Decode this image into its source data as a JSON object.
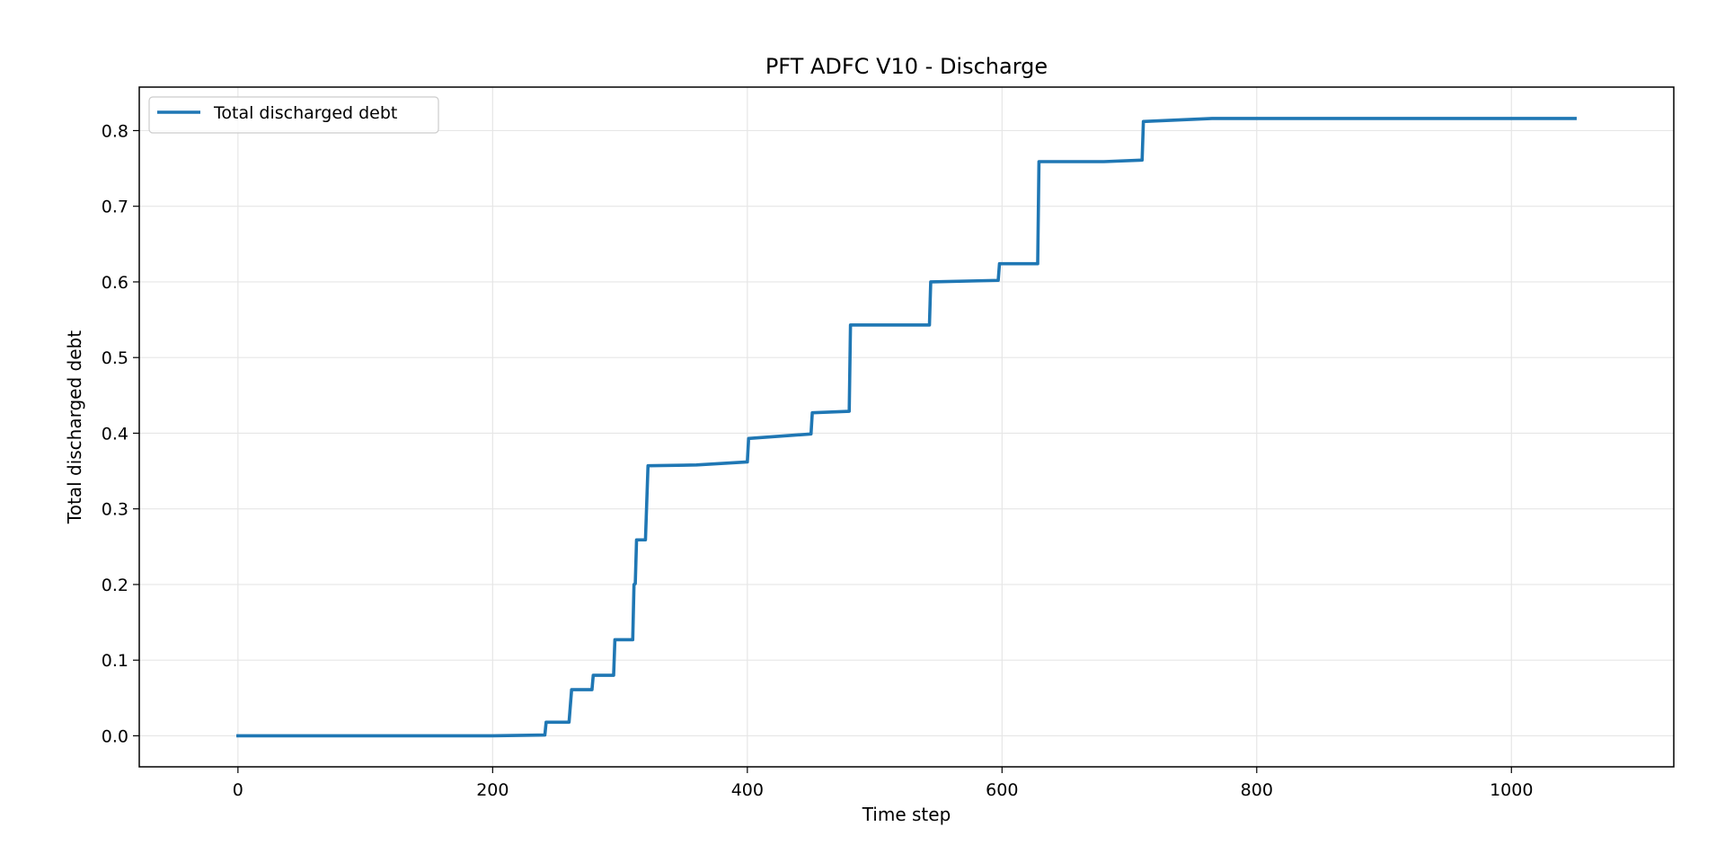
{
  "chart_data": {
    "type": "line",
    "title": "PFT ADFC V10 - Discharge",
    "xlabel": "Time step",
    "ylabel": "Total discharged debt",
    "xlim": [
      -77.5,
      1127.5
    ],
    "ylim": [
      -0.041,
      0.8575
    ],
    "xticks": [
      0,
      200,
      400,
      600,
      800,
      1000
    ],
    "xtick_labels": [
      "0",
      "200",
      "400",
      "600",
      "800",
      "1000"
    ],
    "yticks": [
      0.0,
      0.1,
      0.2,
      0.3,
      0.4,
      0.5,
      0.6,
      0.7,
      0.8
    ],
    "ytick_labels": [
      "0.0",
      "0.1",
      "0.2",
      "0.3",
      "0.4",
      "0.5",
      "0.6",
      "0.7",
      "0.8"
    ],
    "grid": true,
    "legend_position": "top-left",
    "series": [
      {
        "name": "Total discharged debt",
        "color": "#1f77b4",
        "x": [
          0,
          200,
          241,
          242,
          260,
          262,
          278,
          279,
          295,
          296,
          310,
          311,
          312,
          313,
          320,
          322,
          360,
          400,
          401,
          450,
          451,
          480,
          481,
          543,
          544,
          597,
          598,
          628,
          629,
          680,
          710,
          711,
          765,
          1050
        ],
        "y": [
          0.0,
          0.0,
          0.001,
          0.018,
          0.018,
          0.061,
          0.061,
          0.08,
          0.08,
          0.127,
          0.127,
          0.2,
          0.201,
          0.259,
          0.259,
          0.357,
          0.358,
          0.362,
          0.393,
          0.399,
          0.427,
          0.429,
          0.543,
          0.543,
          0.6,
          0.602,
          0.624,
          0.624,
          0.759,
          0.759,
          0.761,
          0.812,
          0.816,
          0.816
        ]
      }
    ]
  }
}
